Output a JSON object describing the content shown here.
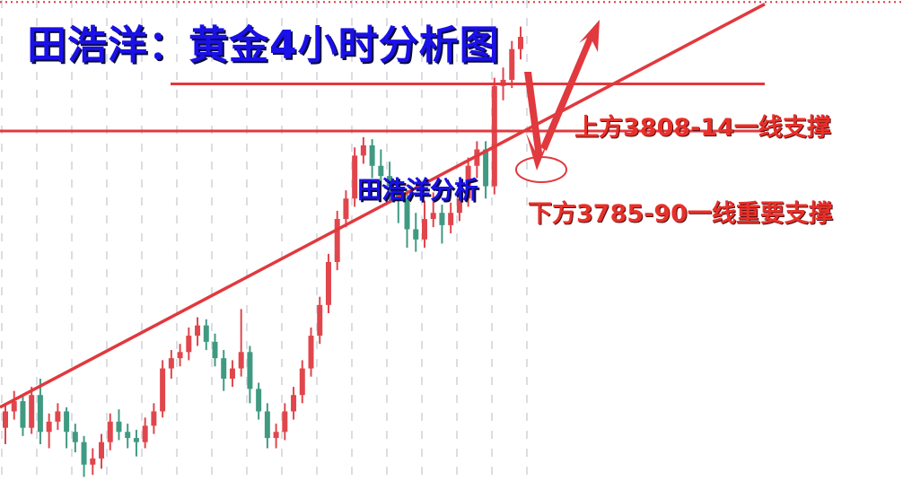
{
  "title": "田浩洋：黄金4小时分析图",
  "watermark": "田浩洋分析",
  "annotations": {
    "upper_support": "上方3808-14一线支撑",
    "lower_support": "下方3785-90一线重要支撑"
  },
  "colors": {
    "up_candle": "#e0464c",
    "down_candle": "#409a82",
    "lines": "#e0393e",
    "title": "#1a10e8",
    "annotation": "#e8302a",
    "grid": "#dcdde3"
  },
  "chart_data": {
    "type": "candlestick",
    "timeframe": "4H",
    "ylim": [
      3614,
      3849
    ],
    "grid": "vertical dashed",
    "candles": [
      [
        3640,
        3652,
        3632,
        3648
      ],
      [
        3648,
        3658,
        3644,
        3653
      ],
      [
        3653,
        3656,
        3636,
        3640
      ],
      [
        3640,
        3660,
        3637,
        3656
      ],
      [
        3656,
        3664,
        3632,
        3638
      ],
      [
        3638,
        3647,
        3630,
        3643
      ],
      [
        3643,
        3652,
        3639,
        3648
      ],
      [
        3648,
        3650,
        3630,
        3638
      ],
      [
        3638,
        3642,
        3628,
        3633
      ],
      [
        3633,
        3636,
        3616,
        3622
      ],
      [
        3622,
        3630,
        3617,
        3625
      ],
      [
        3625,
        3637,
        3620,
        3633
      ],
      [
        3633,
        3647,
        3629,
        3643
      ],
      [
        3643,
        3649,
        3634,
        3638
      ],
      [
        3638,
        3642,
        3630,
        3635
      ],
      [
        3635,
        3639,
        3626,
        3633
      ],
      [
        3633,
        3645,
        3630,
        3641
      ],
      [
        3641,
        3652,
        3637,
        3648
      ],
      [
        3648,
        3673,
        3645,
        3669
      ],
      [
        3669,
        3678,
        3664,
        3674
      ],
      [
        3674,
        3681,
        3670,
        3677
      ],
      [
        3677,
        3689,
        3673,
        3685
      ],
      [
        3685,
        3694,
        3680,
        3690
      ],
      [
        3690,
        3693,
        3678,
        3682
      ],
      [
        3682,
        3686,
        3670,
        3674
      ],
      [
        3674,
        3678,
        3658,
        3664
      ],
      [
        3664,
        3673,
        3660,
        3669
      ],
      [
        3669,
        3698,
        3665,
        3677
      ],
      [
        3677,
        3680,
        3652,
        3659
      ],
      [
        3659,
        3662,
        3644,
        3648
      ],
      [
        3648,
        3652,
        3630,
        3635
      ],
      [
        3635,
        3642,
        3630,
        3638
      ],
      [
        3638,
        3652,
        3634,
        3648
      ],
      [
        3648,
        3660,
        3644,
        3656
      ],
      [
        3656,
        3673,
        3652,
        3669
      ],
      [
        3669,
        3689,
        3665,
        3685
      ],
      [
        3685,
        3704,
        3681,
        3700
      ],
      [
        3700,
        3725,
        3696,
        3721
      ],
      [
        3721,
        3746,
        3717,
        3742
      ],
      [
        3742,
        3756,
        3738,
        3752
      ],
      [
        3752,
        3777,
        3748,
        3773
      ],
      [
        3773,
        3782,
        3769,
        3778
      ],
      [
        3778,
        3781,
        3762,
        3768
      ],
      [
        3768,
        3776,
        3758,
        3763
      ],
      [
        3763,
        3770,
        3750,
        3758
      ],
      [
        3758,
        3762,
        3740,
        3752
      ],
      [
        3752,
        3756,
        3728,
        3737
      ],
      [
        3737,
        3745,
        3726,
        3732
      ],
      [
        3732,
        3751,
        3728,
        3742
      ],
      [
        3742,
        3755,
        3738,
        3745
      ],
      [
        3745,
        3749,
        3730,
        3739
      ],
      [
        3739,
        3750,
        3735,
        3745
      ],
      [
        3745,
        3758,
        3741,
        3752
      ],
      [
        3752,
        3772,
        3748,
        3768
      ],
      [
        3768,
        3780,
        3762,
        3776
      ],
      [
        3776,
        3780,
        3752,
        3758
      ],
      [
        3758,
        3811,
        3754,
        3807
      ],
      [
        3807,
        3816,
        3800,
        3810
      ],
      [
        3810,
        3829,
        3806,
        3825
      ],
      [
        3825,
        3836,
        3820,
        3831
      ]
    ],
    "horizontal_lines": [
      3808,
      3785
    ],
    "current_price_line": 3848,
    "trendline": {
      "start_price": 3650,
      "end_price": 3847
    }
  }
}
